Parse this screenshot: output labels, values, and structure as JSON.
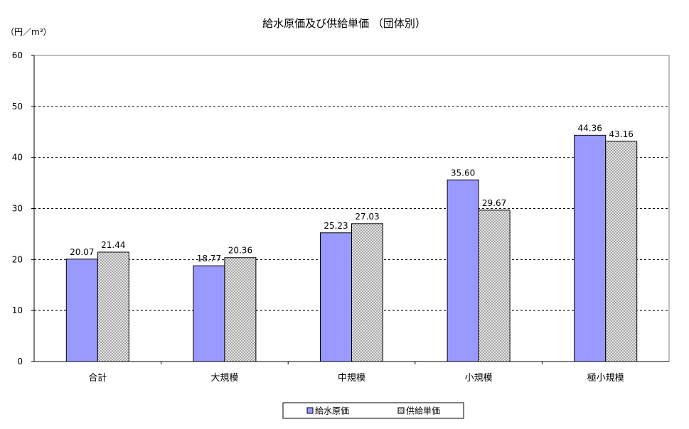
{
  "chart_data": {
    "type": "bar",
    "title": "給水原価及び供給単価 （団体別）",
    "ylabel": "（円／m³）",
    "categories": [
      "合計",
      "大規模",
      "中規模",
      "小規模",
      "極小規模"
    ],
    "series": [
      {
        "name": "給水原価",
        "values": [
          20.07,
          18.77,
          25.23,
          35.6,
          44.36
        ],
        "labels": [
          "20.07",
          "18.77",
          "25.23",
          "35.60",
          "44.36"
        ],
        "color": "#9999ff"
      },
      {
        "name": "供給単価",
        "values": [
          21.44,
          20.36,
          27.03,
          29.67,
          43.16
        ],
        "labels": [
          "21.44",
          "20.36",
          "27.03",
          "29.67",
          "43.16"
        ],
        "color": "#e6e6e6",
        "pattern": "crosshatch"
      }
    ],
    "ylim": [
      0,
      60
    ],
    "yticks": [
      0,
      10,
      20,
      30,
      40,
      50,
      60
    ],
    "grid": "dashed-horizontal",
    "legend_position": "bottom"
  }
}
